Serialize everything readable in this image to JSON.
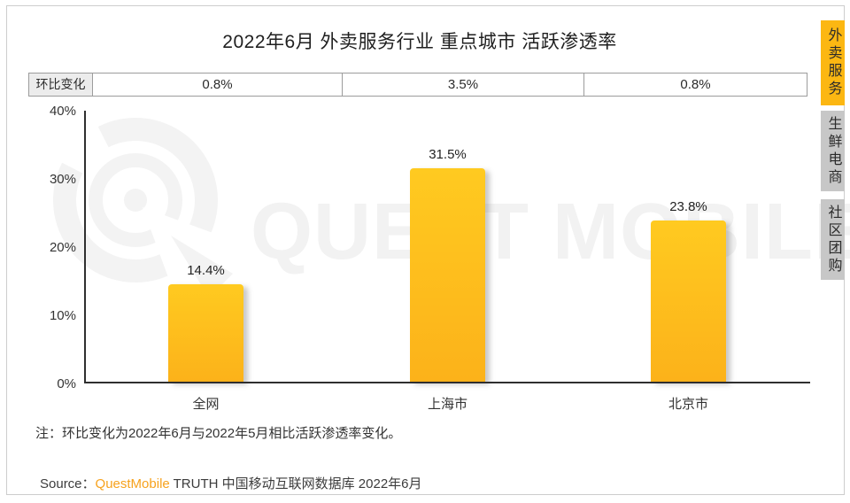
{
  "title": "2022年6月 外卖服务行业 重点城市 活跃渗透率",
  "mom_row": {
    "label": "环比变化",
    "values": [
      "0.8%",
      "3.5%",
      "0.8%"
    ]
  },
  "chart_data": {
    "type": "bar",
    "title": "2022年6月 外卖服务行业 重点城市 活跃渗透率",
    "categories": [
      "全网",
      "上海市",
      "北京市"
    ],
    "values": [
      14.4,
      31.5,
      23.8
    ],
    "value_labels": [
      "14.4%",
      "31.5%",
      "23.8%"
    ],
    "mom_change_labels": [
      "0.8%",
      "3.5%",
      "0.8%"
    ],
    "yticks": [
      "40%",
      "30%",
      "20%",
      "10%",
      "0%"
    ],
    "ylim": [
      0,
      40
    ],
    "grid": "off",
    "bar_color_top": "#ffca20",
    "bar_color_bottom": "#fcb21a"
  },
  "sidebar": {
    "tabs": [
      {
        "label": "外卖服务",
        "active": true
      },
      {
        "label": "生鲜电商",
        "active": false
      },
      {
        "label": "社区团购",
        "active": false
      }
    ],
    "active_color": "#fcb712",
    "inactive_color": "#c7c7c7"
  },
  "note": "注：环比变化为2022年6月与2022年5月相比活跃渗透率变化。",
  "source": {
    "prefix": "Source：",
    "brand": "QuestMobile",
    "suffix": " TRUTH 中国移动互联网数据库 2022年6月"
  },
  "watermark": {
    "text": "QUEST MOBILE",
    "logo": "questmobile-q-logo",
    "color": "#f2f2f2"
  },
  "colors": {
    "brand_orange": "#f7a21d",
    "axis": "#2f2f2f",
    "table_border": "#9c9c9c",
    "table_label_bg": "#ececec",
    "card_border": "#cdcdcd"
  }
}
